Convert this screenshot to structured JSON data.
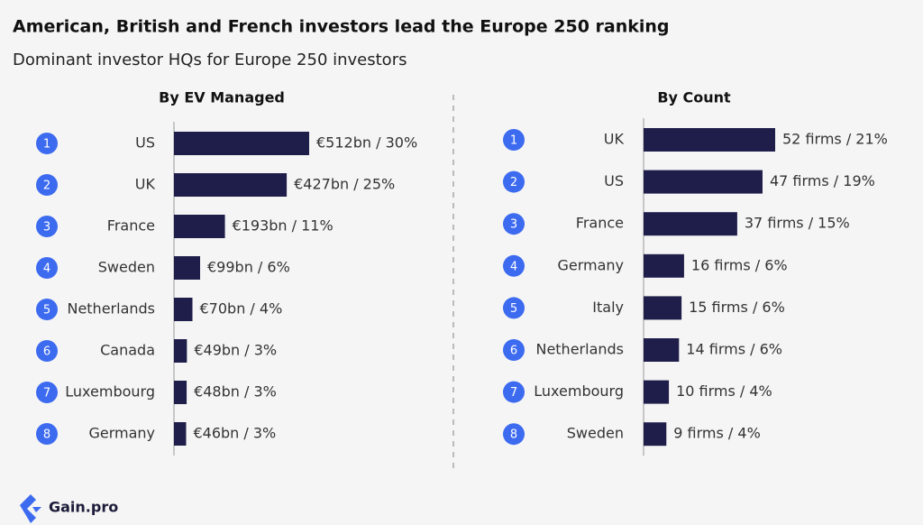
{
  "title": "American, British and French investors lead the Europe 250 ranking",
  "subtitle": "Dominant investor HQs for Europe 250 investors",
  "brand": "Gain.pro",
  "chart_data": [
    {
      "type": "bar",
      "title": "By EV Managed",
      "color": "#1f1d4a",
      "ranks": [
        1,
        2,
        3,
        4,
        5,
        6,
        7,
        8
      ],
      "categories": [
        "US",
        "UK",
        "France",
        "Sweden",
        "Netherlands",
        "Canada",
        "Luxembourg",
        "Germany"
      ],
      "values": [
        512,
        427,
        193,
        99,
        70,
        49,
        48,
        46
      ],
      "value_labels": [
        "€512bn / 30%",
        "€427bn / 25%",
        "€193bn / 11%",
        "€99bn / 6%",
        "€70bn / 4%",
        "€49bn / 3%",
        "€48bn / 3%",
        "€46bn / 3%"
      ]
    },
    {
      "type": "bar",
      "title": "By  Count",
      "color": "#1f1d4a",
      "ranks": [
        1,
        2,
        3,
        4,
        5,
        6,
        7,
        8
      ],
      "categories": [
        "UK",
        "US",
        "France",
        "Germany",
        "Italy",
        "Netherlands",
        "Luxembourg",
        "Sweden"
      ],
      "values": [
        52,
        47,
        37,
        16,
        15,
        14,
        10,
        9
      ],
      "value_labels": [
        "52 firms / 21%",
        "47 firms / 19%",
        "37 firms / 15%",
        "16 firms / 6%",
        "15 firms / 6%",
        "14 firms / 6%",
        "10 firms / 4%",
        "9 firms / 4%"
      ]
    }
  ]
}
